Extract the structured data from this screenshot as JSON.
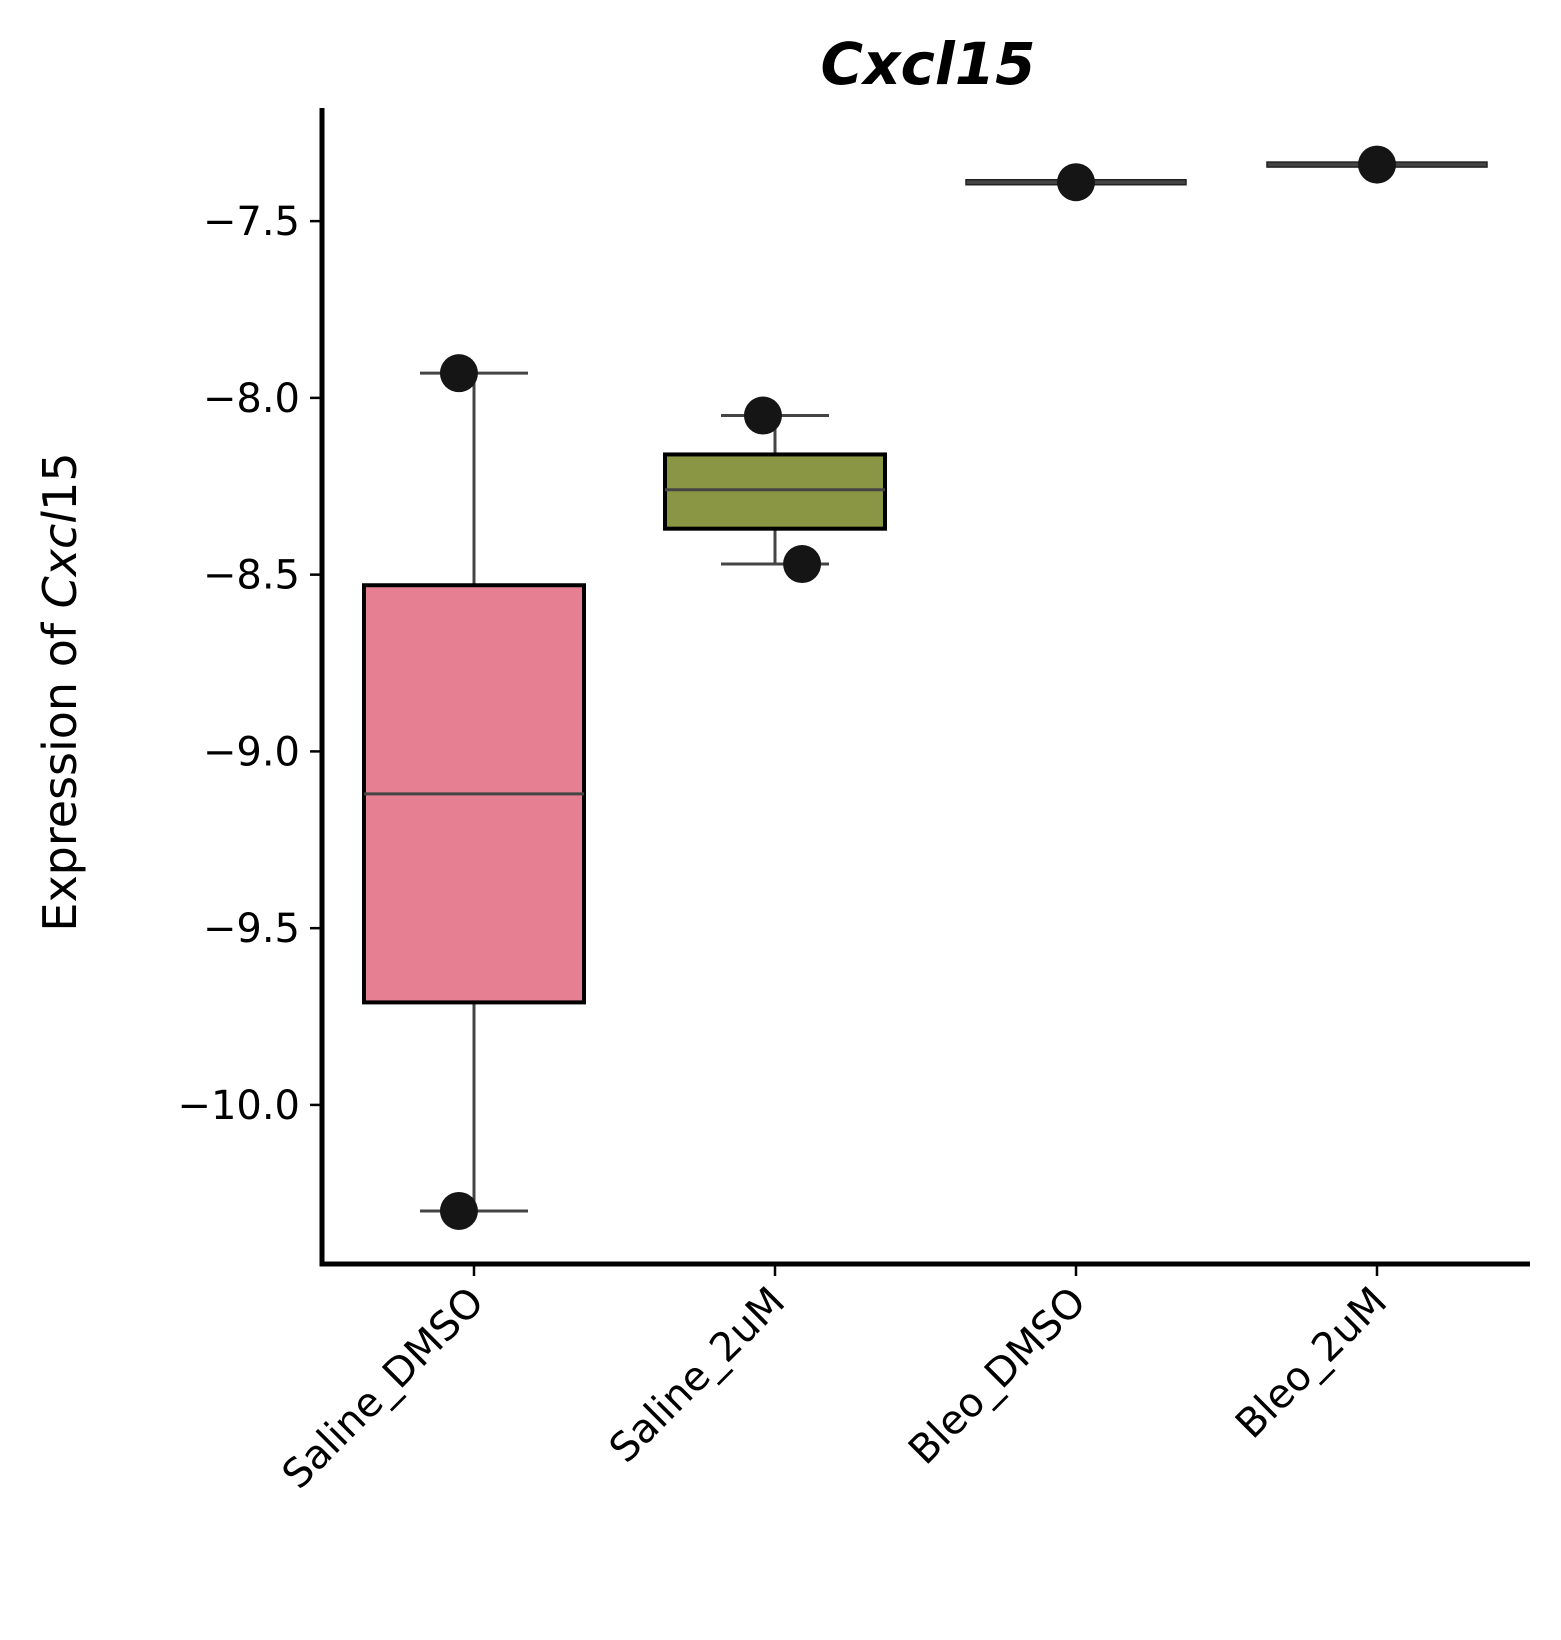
{
  "chart_data": {
    "type": "box",
    "title": "Cxcl15",
    "ylabel": {
      "prefix": "Expression of ",
      "italic": "Cxcl",
      "suffix": "15"
    },
    "xlabel": "",
    "ylim": [
      -10.45,
      -7.18
    ],
    "yticks": [
      -7.5,
      -8.0,
      -8.5,
      -9.0,
      -9.5,
      -10.0
    ],
    "ytick_labels": [
      "−7.5",
      "−8.0",
      "−8.5",
      "−9.0",
      "−9.5",
      "−10.0"
    ],
    "categories": [
      "Saline_DMSO",
      "Saline_2uM",
      "Bleo_DMSO",
      "Bleo_2uM"
    ],
    "boxes": [
      {
        "category": "Saline_DMSO",
        "color": "#e67f92",
        "whisker_low": -10.3,
        "q1": -9.71,
        "median": -9.12,
        "q3": -8.53,
        "whisker_high": -7.93
      },
      {
        "category": "Saline_2uM",
        "color": "#8a9644",
        "whisker_low": -8.47,
        "q1": -8.37,
        "median": -8.26,
        "q3": -8.16,
        "whisker_high": -8.05
      },
      {
        "category": "Bleo_DMSO",
        "color": "#444444",
        "whisker_low": -7.39,
        "q1": -7.39,
        "median": -7.39,
        "q3": -7.39,
        "whisker_high": -7.39
      },
      {
        "category": "Bleo_2uM",
        "color": "#444444",
        "whisker_low": -7.34,
        "q1": -7.34,
        "median": -7.34,
        "q3": -7.34,
        "whisker_high": -7.34
      }
    ],
    "points": [
      {
        "category": "Saline_DMSO",
        "jitter": -0.05,
        "y": -7.93
      },
      {
        "category": "Saline_DMSO",
        "jitter": -0.05,
        "y": -10.3
      },
      {
        "category": "Saline_2uM",
        "jitter": -0.04,
        "y": -8.05
      },
      {
        "category": "Saline_2uM",
        "jitter": 0.09,
        "y": -8.47
      },
      {
        "category": "Bleo_DMSO",
        "jitter": 0.0,
        "y": -7.39
      },
      {
        "category": "Bleo_2uM",
        "jitter": 0.0,
        "y": -7.34
      }
    ],
    "grid": false,
    "legend": "none"
  }
}
